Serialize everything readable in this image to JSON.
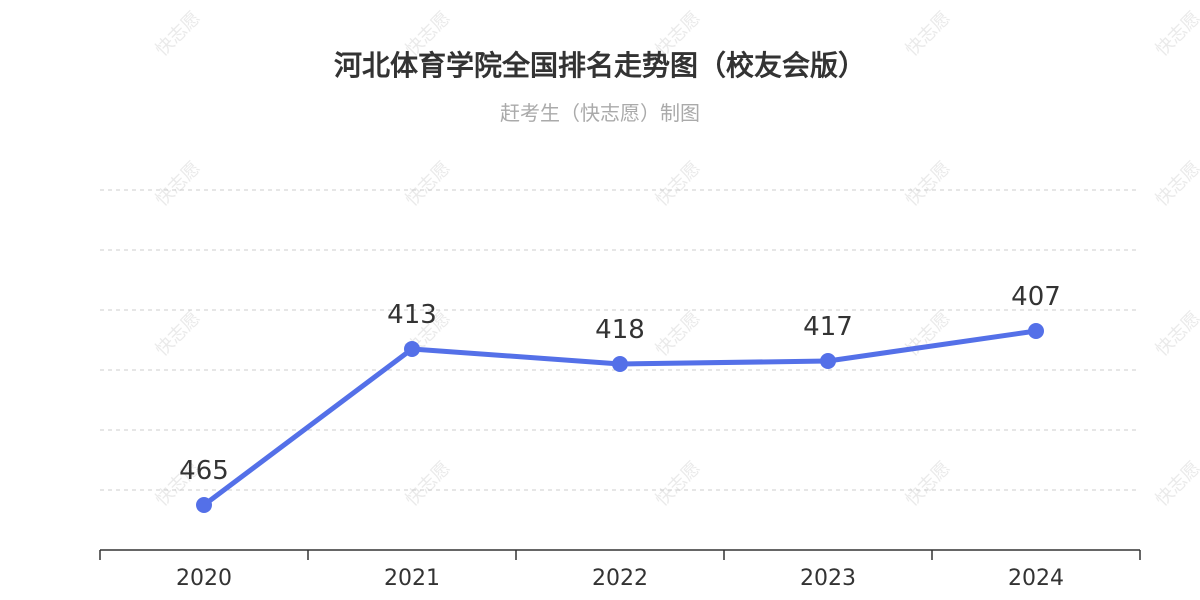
{
  "watermark": "快志愿",
  "colors": {
    "line": "#5470e8",
    "grid": "#cccccc",
    "axis": "#333333"
  },
  "chart_data": {
    "type": "line",
    "title": "河北体育学院全国排名走势图（校友会版）",
    "subtitle": "赶考生（快志愿）制图",
    "categories": [
      "2020",
      "2021",
      "2022",
      "2023",
      "2024"
    ],
    "series": [
      {
        "values": [
          465,
          413,
          418,
          417,
          407
        ]
      }
    ],
    "yaxis": {
      "inverse": true,
      "range": [
        360,
        460
      ],
      "labels_visible": false
    },
    "grid": true,
    "legend": "none"
  }
}
